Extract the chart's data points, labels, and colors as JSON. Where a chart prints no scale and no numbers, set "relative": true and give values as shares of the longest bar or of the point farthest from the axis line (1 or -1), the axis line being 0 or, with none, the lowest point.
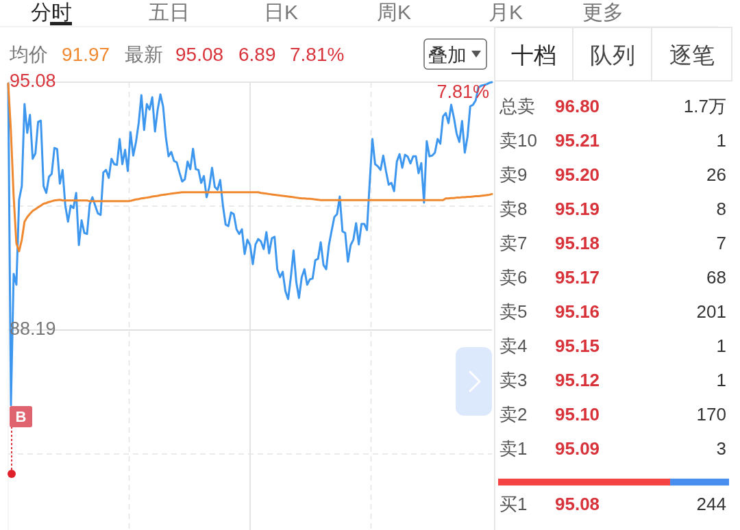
{
  "chart_data": [
    {
      "type": "line",
      "categories": [
        null,
        null,
        null,
        null,
        null,
        null,
        null,
        null,
        null,
        null,
        null,
        null,
        null,
        null,
        null,
        null,
        null,
        null,
        null,
        null,
        null,
        null,
        null,
        null,
        null,
        null,
        null,
        null,
        null,
        null,
        null,
        null,
        null,
        null,
        null,
        null,
        null,
        null,
        null,
        null,
        null,
        null,
        null,
        null,
        null,
        null,
        null,
        null,
        null,
        null,
        null,
        null,
        null,
        null,
        null,
        null,
        null,
        null,
        null,
        null,
        null,
        null,
        null,
        null,
        null,
        null,
        null,
        null,
        null,
        null,
        null,
        null,
        null,
        null,
        null,
        null,
        null,
        null,
        null,
        null,
        null,
        null,
        null,
        null,
        null,
        null,
        null,
        null,
        null,
        null,
        null,
        null,
        null,
        null,
        null,
        null,
        null,
        null,
        null,
        null,
        null,
        null,
        null,
        null,
        null,
        null,
        null,
        null,
        null,
        null,
        null,
        null,
        null,
        null,
        null,
        null,
        null,
        null,
        null,
        null,
        null,
        null,
        null,
        null,
        null,
        null,
        null,
        null,
        null,
        null,
        null,
        null,
        null,
        null,
        null,
        null,
        null,
        null,
        null,
        null,
        null,
        null,
        null,
        null,
        null,
        null,
        null,
        null,
        null,
        null,
        null,
        null,
        null,
        null,
        null,
        null,
        null,
        null,
        null,
        null,
        null,
        null,
        null,
        null,
        null,
        null,
        null,
        null,
        null,
        null,
        null,
        null,
        null,
        null,
        null,
        null,
        null,
        null,
        null
      ],
      "series": [
        {
          "color": "#3e97ef",
          "values": [
            95.04,
            86.1,
            89.75,
            89.45,
            91.81,
            92.19,
            94.47,
            93.67,
            94.17,
            92.95,
            93.1,
            93.98,
            94.01,
            92.19,
            92.0,
            92.45,
            92.53,
            93.25,
            93.22,
            92.26,
            92.64,
            91.65,
            91.2,
            91.65,
            91.58,
            92.0,
            90.55,
            91.24,
            90.89,
            90.86,
            91.69,
            91.88,
            91.65,
            91.43,
            91.39,
            92.57,
            92.64,
            92.42,
            92.95,
            92.8,
            92.78,
            93.5,
            92.8,
            93.2,
            92.61,
            93.69,
            93.04,
            93.41,
            93.94,
            94.72,
            93.75,
            94.47,
            94.32,
            94.66,
            93.71,
            94.32,
            94.74,
            94.4,
            93.56,
            93.02,
            93.14,
            92.89,
            92.85,
            92.57,
            92.32,
            92.38,
            92.87,
            92.66,
            93.23,
            92.66,
            92.64,
            92.28,
            92.47,
            91.88,
            92.17,
            92.7,
            92.17,
            92.09,
            92.36,
            91.65,
            91.12,
            91.08,
            91.46,
            91.41,
            90.99,
            90.86,
            90.99,
            90.3,
            90.7,
            90.55,
            90.02,
            90.57,
            90.72,
            90.65,
            90.44,
            90.91,
            90.32,
            90.74,
            90.78,
            89.88,
            89.66,
            89.81,
            89.27,
            89.05,
            89.66,
            90.4,
            89.52,
            89.08,
            89.66,
            89.88,
            89.45,
            89.6,
            89.62,
            90.13,
            90.17,
            90.63,
            90.0,
            89.88,
            90.55,
            90.95,
            91.33,
            91.41,
            91.9,
            90.93,
            90.89,
            90.09,
            90.55,
            90.7,
            91.16,
            90.57,
            91.14,
            91.14,
            90.97,
            92.28,
            93.5,
            92.8,
            92.74,
            92.64,
            93.04,
            92.61,
            92.23,
            92.28,
            92.05,
            92.87,
            93.08,
            92.7,
            93.06,
            93.01,
            92.82,
            93.02,
            93.02,
            92.55,
            92.83,
            91.73,
            93.44,
            93.02,
            93.04,
            93.12,
            93.5,
            93.37,
            94.13,
            94.22,
            93.94,
            94.45,
            94.09,
            93.65,
            93.42,
            94.0,
            93.12,
            93.56,
            94.41,
            94.45,
            94.57,
            94.93,
            94.98,
            95.0,
            95.02,
            95.06,
            95.08
          ]
        },
        {
          "color": "#f0882f",
          "values": [
            95.04,
            93.7,
            91.9,
            90.6,
            90.38,
            90.7,
            91.2,
            91.33,
            91.42,
            91.5,
            91.55,
            91.6,
            91.65,
            91.7,
            91.72,
            91.75,
            91.77,
            91.79,
            91.8,
            91.81,
            91.79,
            91.79,
            91.79,
            91.79,
            91.79,
            91.79,
            91.79,
            91.79,
            91.79,
            91.79,
            91.77,
            91.77,
            91.77,
            91.77,
            91.77,
            91.77,
            91.77,
            91.77,
            91.77,
            91.77,
            91.77,
            91.77,
            91.77,
            91.77,
            91.77,
            91.78,
            91.8,
            91.82,
            91.83,
            91.85,
            91.86,
            91.87,
            91.88,
            91.9,
            91.91,
            91.92,
            91.94,
            91.95,
            91.96,
            91.97,
            91.98,
            91.99,
            92.0,
            92.01,
            92.02,
            92.02,
            92.02,
            92.02,
            92.02,
            92.02,
            92.02,
            92.02,
            92.02,
            92.02,
            92.02,
            92.02,
            92.02,
            92.02,
            92.02,
            92.02,
            92.02,
            92.02,
            92.02,
            92.02,
            92.02,
            92.02,
            92.02,
            92.02,
            92.02,
            92.02,
            92.02,
            92.02,
            92.02,
            92.0,
            91.99,
            91.98,
            91.97,
            91.96,
            91.95,
            91.94,
            91.93,
            91.92,
            91.91,
            91.9,
            91.89,
            91.88,
            91.87,
            91.86,
            91.85,
            91.85,
            91.84,
            91.84,
            91.83,
            91.82,
            91.81,
            91.8,
            91.8,
            91.8,
            91.8,
            91.8,
            91.8,
            91.8,
            91.8,
            91.8,
            91.8,
            91.8,
            91.8,
            91.8,
            91.8,
            91.8,
            91.8,
            91.8,
            91.8,
            91.8,
            91.8,
            91.8,
            91.8,
            91.8,
            91.8,
            91.8,
            91.8,
            91.8,
            91.8,
            91.8,
            91.8,
            91.8,
            91.8,
            91.8,
            91.8,
            91.8,
            91.8,
            91.8,
            91.8,
            91.8,
            91.8,
            91.8,
            91.8,
            91.8,
            91.8,
            91.8,
            91.8,
            91.85,
            91.85,
            91.86,
            91.86,
            91.87,
            91.87,
            91.88,
            91.88,
            91.89,
            91.89,
            91.9,
            91.91,
            91.91,
            91.92,
            91.93,
            91.94,
            91.95,
            91.97
          ]
        }
      ],
      "ylim": [
        82.63,
        95.08
      ],
      "yticks": [
        {
          "value": 84.745,
          "label": null
        },
        88.19,
        {
          "value": 91.635,
          "label": null
        },
        95.08
      ],
      "grid": true,
      "ref_lines": [
        {
          "axis": "y",
          "value": 88.19,
          "line_style": "solid"
        }
      ],
      "annotations": [
        "分时",
        "五日",
        "日K",
        "周K",
        "月K",
        "更多",
        "均价",
        "91.97",
        "最新",
        "95.08",
        "6.89",
        "7.81%",
        "叠加",
        "7.81%",
        "B"
      ]
    },
    {
      "type": "other",
      "annotations": [
        "十档",
        "队列",
        "逐笔"
      ],
      "categories": [
        "总卖",
        "卖10",
        "卖9",
        "卖8",
        "卖7",
        "卖6",
        "卖5",
        "卖4",
        "卖3",
        "卖2",
        "卖1",
        "买1"
      ],
      "series": [
        {
          "color": "#d8333a",
          "values": [
            96.8,
            95.21,
            95.2,
            95.19,
            95.18,
            95.17,
            95.16,
            95.15,
            95.12,
            95.1,
            95.09,
            95.08
          ],
          "value_labels": [
            "96.80",
            "95.21",
            "95.20",
            "95.19",
            "95.18",
            "95.17",
            "95.16",
            "95.15",
            "95.12",
            "95.10",
            "95.09",
            "95.08"
          ]
        },
        {
          "color": "#333333",
          "values": [
            null,
            1,
            26,
            8,
            7,
            68,
            201,
            1,
            1,
            170,
            3,
            244
          ],
          "value_labels": [
            "1.7万",
            "1",
            "26",
            "8",
            "7",
            "68",
            "201",
            "1",
            "1",
            "170",
            "3",
            "244"
          ]
        }
      ]
    },
    {
      "type": "bar",
      "orientation": "horizontal",
      "stacked": true,
      "relative": true,
      "categories": [
        null
      ],
      "series": [
        {
          "color": "#f44343",
          "values": [
            0.745
          ]
        },
        {
          "color": "#4a8ef0",
          "values": [
            0.255
          ]
        }
      ]
    }
  ]
}
